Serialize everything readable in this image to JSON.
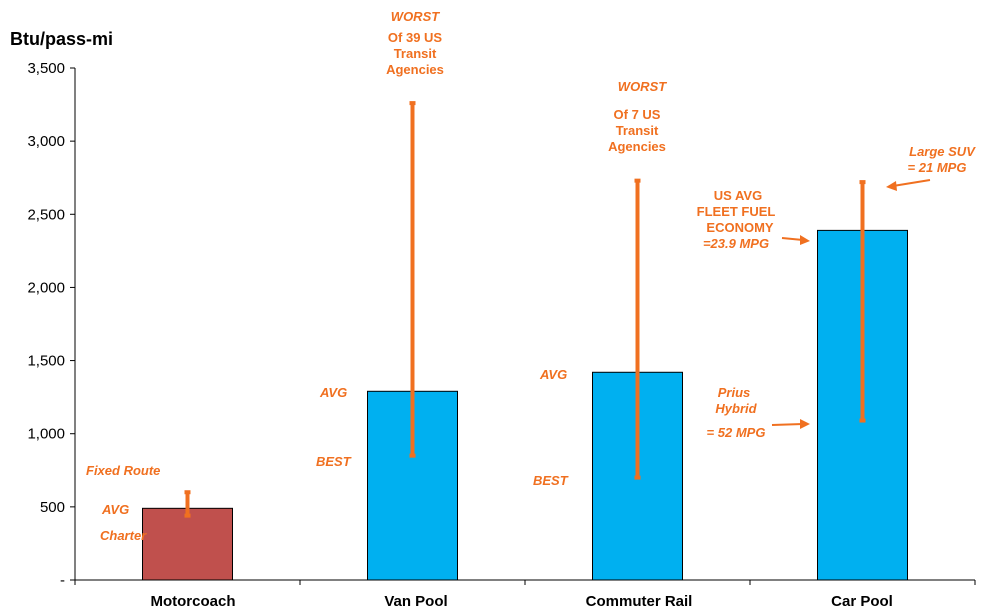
{
  "chart_data": {
    "type": "bar",
    "ylabel": "Btu/pass-mi",
    "ylim": [
      0,
      3500
    ],
    "yticks": [
      0,
      500,
      1000,
      1500,
      2000,
      2500,
      3000,
      3500
    ],
    "ytick_labels": [
      "-",
      "500",
      "1,000",
      "1,500",
      "2,000",
      "2,500",
      "3,000",
      "3,500"
    ],
    "grid": false,
    "categories": [
      "Motorcoach",
      "Van Pool",
      "Commuter Rail",
      "Car Pool"
    ],
    "values": [
      490,
      1290,
      1420,
      2390
    ],
    "bar_colors": [
      "#c0504d",
      "#00b0f0",
      "#00b0f0",
      "#00b0f0"
    ],
    "ranges": [
      {
        "category": "Motorcoach",
        "low": 440,
        "high": 600
      },
      {
        "category": "Van Pool",
        "low": 850,
        "high": 3260
      },
      {
        "category": "Commuter Rail",
        "low": 700,
        "high": 2730
      },
      {
        "category": "Car Pool",
        "low": 1090,
        "high": 2720
      }
    ],
    "range_color": "#f07020",
    "annotation_color": "#f07020"
  },
  "annotations": {
    "motorcoach": {
      "fixed_route": "Fixed Route",
      "avg": "AVG",
      "charter": "Charter"
    },
    "vanpool": {
      "worst": "WORST",
      "worst_desc": [
        "Of 39 US",
        "Transit",
        "Agencies"
      ],
      "avg": "AVG",
      "best": "BEST"
    },
    "commuter_rail": {
      "worst": "WORST",
      "worst_desc": [
        "Of 7 US",
        "Transit",
        "Agencies"
      ],
      "avg": "AVG",
      "best": "BEST"
    },
    "carpool": {
      "suv": [
        "Large SUV",
        "= 21 MPG"
      ],
      "fleet": [
        "US AVG",
        "FLEET FUEL",
        "ECONOMY",
        "=23.9 MPG"
      ],
      "prius": [
        "Prius",
        "Hybrid",
        "= 52 MPG"
      ]
    }
  }
}
